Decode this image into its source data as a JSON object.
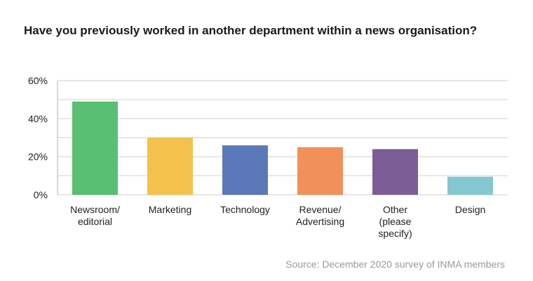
{
  "chart_data": {
    "type": "bar",
    "title": "Have you previously worked in another department within a news organisation?",
    "categories": [
      [
        "Newsroom/",
        "editorial"
      ],
      [
        "Marketing"
      ],
      [
        "Technology"
      ],
      [
        "Revenue/",
        "Advertising"
      ],
      [
        "Other",
        "(please",
        "specify)"
      ],
      [
        "Design"
      ]
    ],
    "values": [
      49,
      30,
      26,
      25,
      24,
      9.5
    ],
    "colors": [
      "#58bf73",
      "#f2c24a",
      "#5b79b8",
      "#f19059",
      "#7b5e95",
      "#85c7d1"
    ],
    "yticks": [
      "0%",
      "20%",
      "40%",
      "60%"
    ],
    "ytick_values": [
      0,
      20,
      40,
      60
    ],
    "ylim": [
      0,
      60
    ],
    "grid": true,
    "source": "Source: December 2020 survey of INMA members"
  }
}
